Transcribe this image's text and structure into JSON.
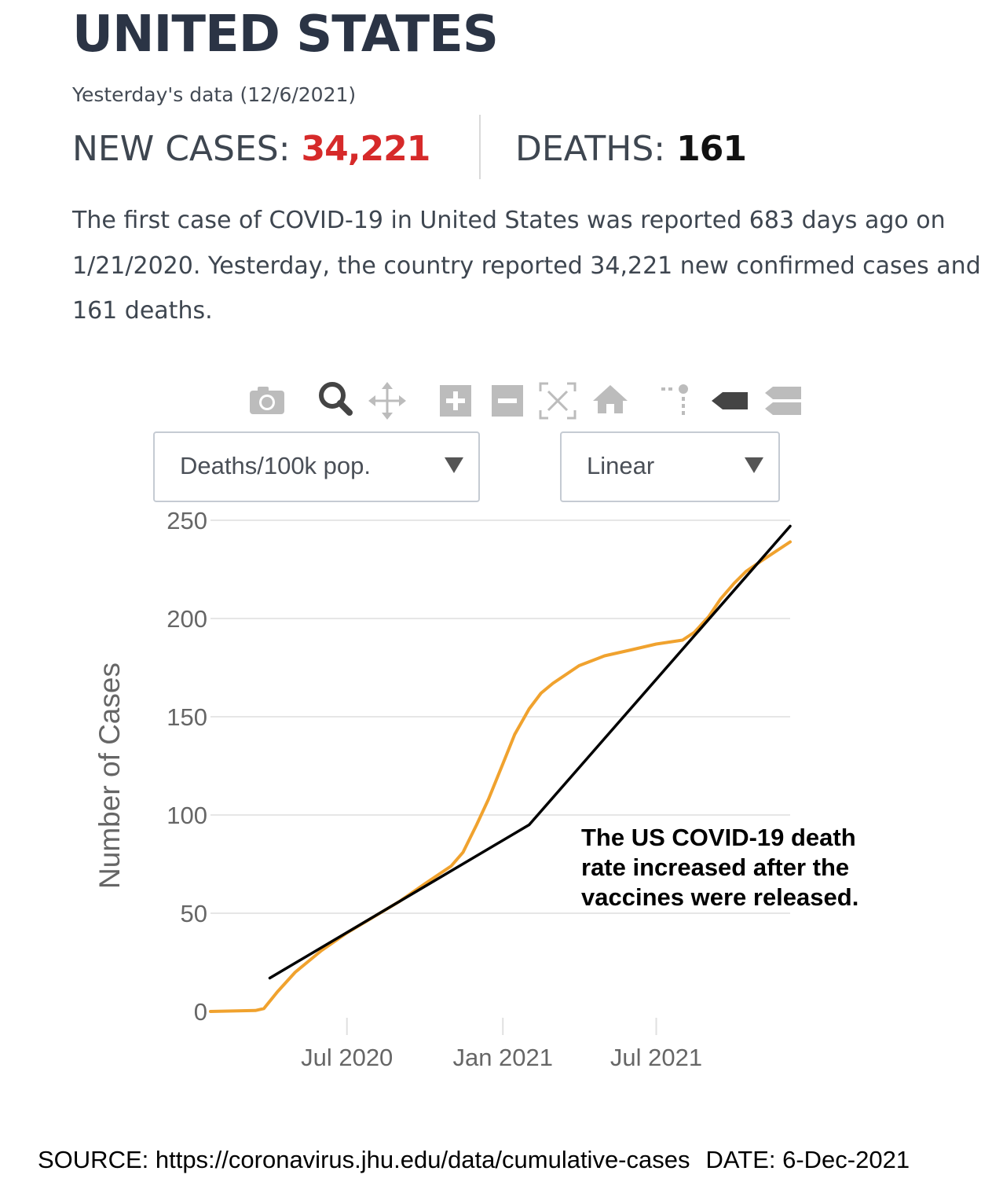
{
  "header": {
    "title": "UNITED STATES",
    "subtitle": "Yesterday's data (12/6/2021)",
    "new_cases_label": "NEW CASES:",
    "new_cases_value": "34,221",
    "deaths_label": "DEATHS:",
    "deaths_value": "161",
    "summary": "The first case of COVID-19 in United States was reported 683 days ago on 1/21/2020. Yesterday, the country reported 34,221 new confirmed cases and 161 deaths."
  },
  "toolbar": {
    "icons": [
      "camera-icon",
      "zoom-icon",
      "pan-icon",
      "zoom-in-icon",
      "zoom-out-icon",
      "autoscale-icon",
      "home-icon",
      "spike-lines-icon",
      "hover-closest-icon",
      "hover-compare-icon"
    ]
  },
  "controls": {
    "metric_select": "Deaths/100k pop.",
    "scale_select": "Linear"
  },
  "colors": {
    "series": "#f0a22e",
    "trend": "#000000",
    "cases_value": "#d62a2a",
    "title": "#2b3445"
  },
  "chart_data": {
    "type": "line",
    "title": "",
    "xlabel": "",
    "ylabel": "Number of Cases",
    "xlim": [
      "2020-01-22",
      "2021-12-06"
    ],
    "ylim": [
      0,
      250
    ],
    "grid": true,
    "y_ticks": [
      0,
      50,
      100,
      150,
      200,
      250
    ],
    "x_ticks": [
      {
        "date": "2020-07-01",
        "label": "Jul 2020"
      },
      {
        "date": "2021-01-01",
        "label": "Jan 2021"
      },
      {
        "date": "2021-07-01",
        "label": "Jul 2021"
      }
    ],
    "series": [
      {
        "color": "#f0a22e",
        "x": [
          "2020-01-22",
          "2020-03-15",
          "2020-03-25",
          "2020-04-10",
          "2020-05-01",
          "2020-06-01",
          "2020-07-01",
          "2020-08-01",
          "2020-09-01",
          "2020-10-01",
          "2020-11-01",
          "2020-11-15",
          "2020-12-01",
          "2020-12-15",
          "2021-01-01",
          "2021-01-15",
          "2021-02-01",
          "2021-02-15",
          "2021-03-01",
          "2021-04-01",
          "2021-05-01",
          "2021-06-01",
          "2021-07-01",
          "2021-08-01",
          "2021-08-15",
          "2021-09-01",
          "2021-09-15",
          "2021-10-01",
          "2021-10-15",
          "2021-11-01",
          "2021-11-15",
          "2021-12-06"
        ],
        "y": [
          0,
          0.5,
          1.5,
          10,
          20,
          31,
          40,
          48,
          56,
          65,
          74,
          81,
          95,
          108,
          126,
          141,
          154,
          162,
          167,
          176,
          181,
          184,
          187,
          189,
          193,
          201,
          210,
          218,
          224,
          229,
          233,
          239
        ]
      },
      {
        "color": "#000000",
        "x": [
          "2020-04-01",
          "2021-02-01",
          "2021-12-06"
        ],
        "y": [
          17,
          95,
          247
        ]
      }
    ],
    "annotations": [
      "The US COVID-19 death rate increased after the vaccines were released."
    ]
  },
  "footer": {
    "source": "SOURCE: https://coronavirus.jhu.edu/data/cumulative-cases",
    "date": "DATE: 6-Dec-2021"
  }
}
